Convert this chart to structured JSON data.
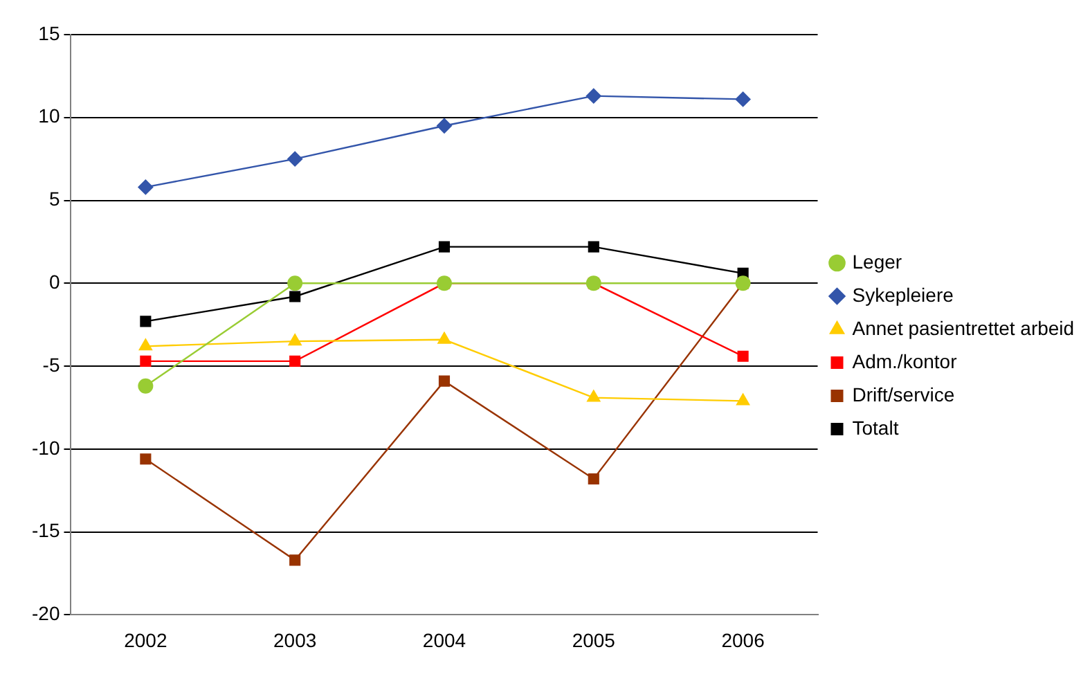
{
  "chart_data": {
    "type": "line",
    "categories": [
      "2002",
      "2003",
      "2004",
      "2005",
      "2006"
    ],
    "series": [
      {
        "name": "Leger",
        "color": "#99cc33",
        "marker": "circle",
        "values": [
          -6.2,
          0,
          0,
          0,
          0
        ]
      },
      {
        "name": "Sykepleiere",
        "color": "#3355aa",
        "marker": "diamond",
        "values": [
          5.8,
          7.5,
          9.5,
          11.3,
          11.1
        ]
      },
      {
        "name": "Annet pasientrettet arbeid",
        "color": "#ffcc00",
        "marker": "triangle",
        "values": [
          -3.8,
          -3.5,
          -3.4,
          -6.9,
          -7.1
        ]
      },
      {
        "name": "Adm./kontor",
        "color": "#ff0000",
        "marker": "square",
        "values": [
          -4.7,
          -4.7,
          0,
          0,
          -4.4
        ]
      },
      {
        "name": "Drift/service",
        "color": "#993300",
        "marker": "square",
        "values": [
          -10.6,
          -16.7,
          -5.9,
          -11.8,
          0
        ]
      },
      {
        "name": "Totalt",
        "color": "#000000",
        "marker": "square",
        "values": [
          -2.3,
          -0.8,
          2.2,
          2.2,
          0.6
        ]
      }
    ],
    "ylim": [
      -20,
      15
    ],
    "yticks": [
      -20,
      -15,
      -10,
      -5,
      0,
      5,
      10,
      15
    ],
    "grid": "y",
    "legend": "right"
  }
}
